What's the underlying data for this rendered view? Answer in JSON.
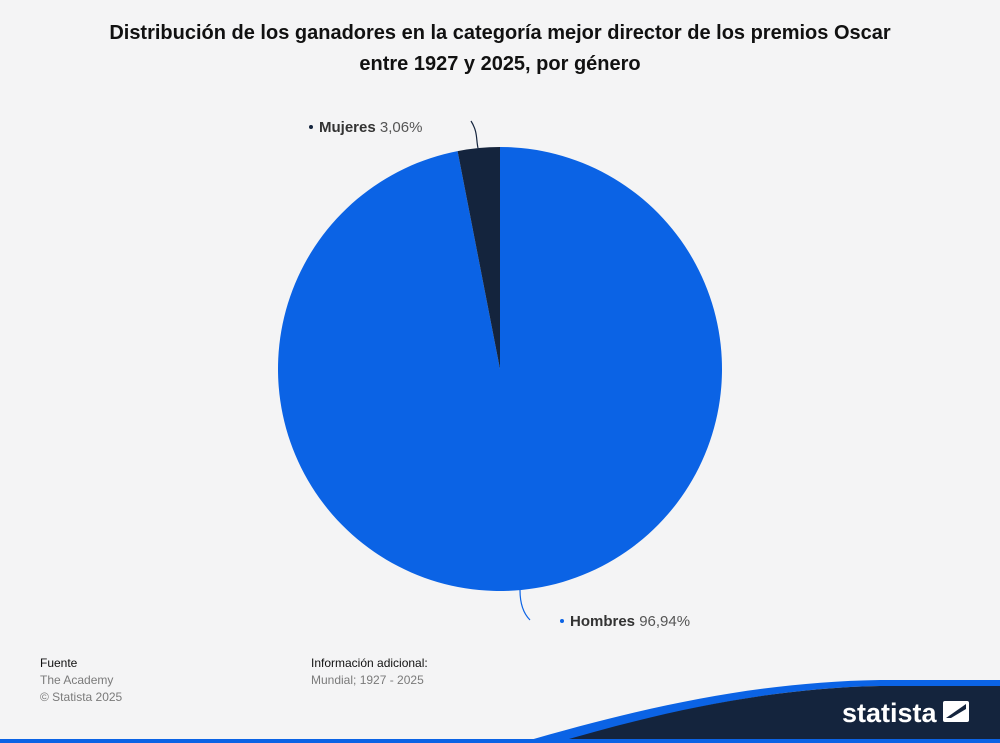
{
  "chart_data": {
    "type": "pie",
    "title": "Distribución de los ganadores en la categoría mejor director de los premios Oscar entre 1927 y 2025, por género",
    "slices": [
      {
        "name": "Hombres",
        "value": 96.94,
        "label": "96,94%",
        "color": "#0b63e5"
      },
      {
        "name": "Mujeres",
        "value": 3.06,
        "label": "3,06%",
        "color": "#14243d"
      }
    ]
  },
  "title_line1": "Distribución de los ganadores en la categoría mejor director de los premios Oscar",
  "title_line2": "entre 1927 y 2025, por género",
  "footer": {
    "source_heading": "Fuente",
    "source_name": "The Academy",
    "copyright": "© Statista 2025",
    "info_heading": "Información adicional:",
    "info_text": "Mundial; 1927 - 2025"
  },
  "brand": {
    "logo_text": "statista",
    "accent": "#0b63e5",
    "dark": "#14243d"
  }
}
